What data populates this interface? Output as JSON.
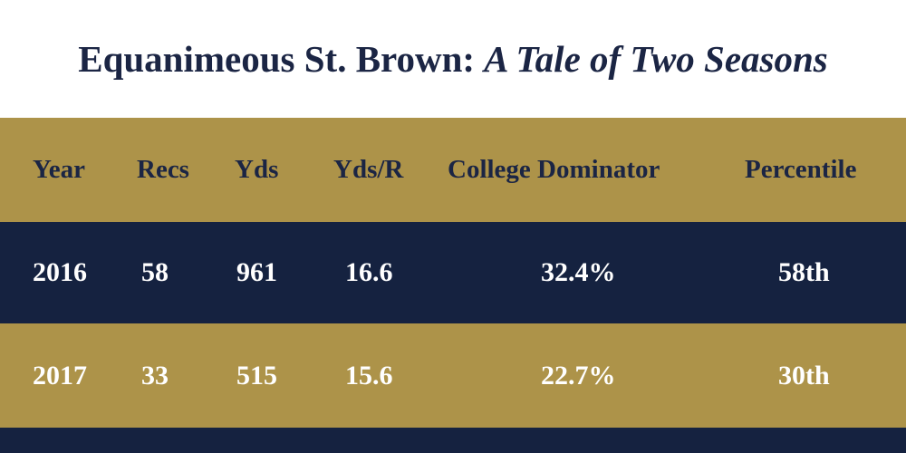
{
  "title": {
    "main": "Equanimeous St. Brown:",
    "sub": "A Tale of Two Seasons"
  },
  "colors": {
    "gold": "#ad9349",
    "navy": "#152240",
    "title_text": "#1b2544"
  },
  "chart_data": {
    "type": "table",
    "title": "Equanimeous St. Brown: A Tale of Two Seasons",
    "columns": [
      "Year",
      "Recs",
      "Yds",
      "Yds/R",
      "College Dominator",
      "Percentile"
    ],
    "rows": [
      [
        "2016",
        "58",
        "961",
        "16.6",
        "32.4%",
        "58th"
      ],
      [
        "2017",
        "33",
        "515",
        "15.6",
        "22.7%",
        "30th"
      ]
    ]
  }
}
